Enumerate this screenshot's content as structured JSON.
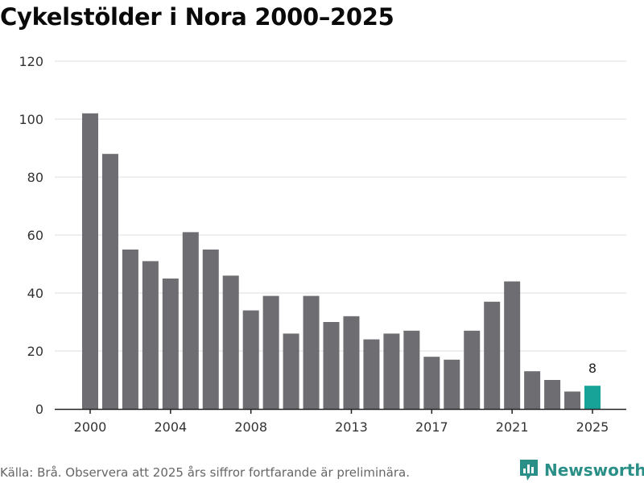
{
  "title": "Cykelstölder i Nora 2000–2025",
  "footer": {
    "source": "Källa: Brå. Observera att 2025 års siffror fortfarande är preliminära.",
    "logo_text": "Newsworthy",
    "logo_icon": "bar-chart-icon"
  },
  "colors": {
    "bar": "#6e6d72",
    "highlight": "#17a398",
    "grid": "#dddddd",
    "axis": "#222222",
    "tick_text": "#333333",
    "brand": "#2a8f86"
  },
  "chart_data": {
    "type": "bar",
    "title": "Cykelstölder i Nora 2000–2025",
    "xlabel": "",
    "ylabel": "",
    "categories": [
      "2000",
      "2001",
      "2002",
      "2003",
      "2004",
      "2005",
      "2006",
      "2007",
      "2008",
      "2009",
      "2010",
      "2011",
      "2012",
      "2013",
      "2014",
      "2015",
      "2016",
      "2017",
      "2018",
      "2019",
      "2020",
      "2021",
      "2022",
      "2023",
      "2024",
      "2025"
    ],
    "values": [
      102,
      88,
      55,
      51,
      45,
      61,
      55,
      46,
      34,
      39,
      26,
      39,
      30,
      32,
      24,
      26,
      27,
      18,
      17,
      27,
      37,
      44,
      13,
      10,
      6,
      8
    ],
    "ylim": [
      0,
      120
    ],
    "yticks": [
      0,
      20,
      40,
      60,
      80,
      100,
      120
    ],
    "xtick_labels": [
      "2000",
      "2004",
      "2008",
      "2013",
      "2017",
      "2021",
      "2025"
    ],
    "highlight_category": "2025",
    "data_labels": [
      {
        "category": "2025",
        "text": "8"
      }
    ],
    "grid": true,
    "legend": "none"
  }
}
